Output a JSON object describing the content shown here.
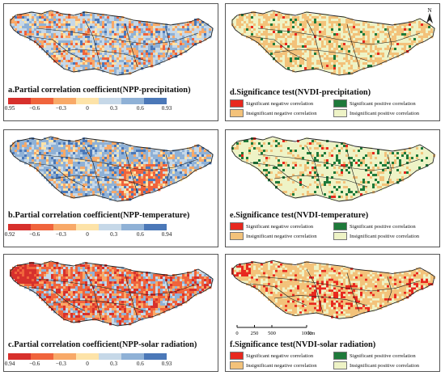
{
  "panels": {
    "a": {
      "title": "a.Partial correlation coefficient(NPP-precipitation)",
      "ticks": [
        "−0.95",
        "−0.6",
        "−0.3",
        "0",
        "0.3",
        "0.6",
        "0.93"
      ]
    },
    "b": {
      "title": "b.Partial correlation coefficient(NPP-temperature)",
      "ticks": [
        "−0.92",
        "−0.6",
        "−0.3",
        "0",
        "0.3",
        "0.6",
        "0.94"
      ]
    },
    "c": {
      "title": "c.Partial correlation coefficient(NPP-solar radiation)",
      "ticks": [
        "−0.94",
        "−0.6",
        "−0.3",
        "0",
        "0.3",
        "0.6",
        "0.93"
      ]
    },
    "d": {
      "title": "d.Significance test(NVDI-precipitation)"
    },
    "e": {
      "title": "e.Significance test(NVDI-temperature)"
    },
    "f": {
      "title": "f.Significance test(NVDI-solar radiation)"
    }
  },
  "significance_legend": {
    "sig_neg": "Significant negative correlation",
    "sig_pos": "Significant positive correlation",
    "insig_neg": "Insignificant negative correlation",
    "insig_pos": "Insignificant positive correlation"
  },
  "north_label": "N",
  "scale": {
    "ticks": [
      "0",
      "250",
      "500",
      "1000"
    ],
    "unit": "km"
  },
  "colors": {
    "ramp": [
      "#d7302c",
      "#f0643c",
      "#f8a968",
      "#fde3a8",
      "#c6d8e8",
      "#8fb1d6",
      "#4b78b8"
    ],
    "sig_neg": "#e8281e",
    "sig_pos": "#1e7a3a",
    "insig_neg": "#f3c27a",
    "insig_pos": "#eef3c6"
  }
}
